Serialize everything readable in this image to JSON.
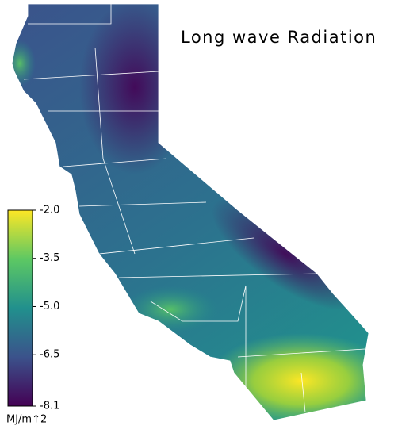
{
  "title": "Long wave Radiation",
  "colorbar": {
    "lim": [
      -8.1,
      -2.0
    ],
    "ticks": [
      {
        "value": -2.0,
        "label": "-2.0"
      },
      -3.5,
      {
        "value": -5.0,
        "label": "-5.0"
      },
      -6.5,
      -8.1
    ],
    "unit_label": "MJ/m↑2",
    "colors": [
      "#440154",
      "#3b528b",
      "#21908d",
      "#5dc863",
      "#fde725"
    ]
  }
}
